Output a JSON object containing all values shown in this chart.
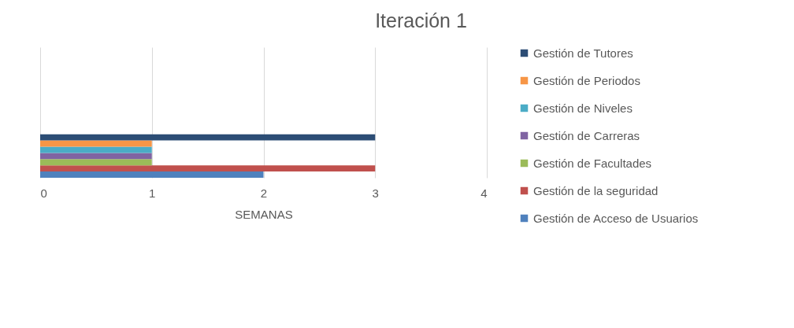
{
  "chart_data": {
    "type": "bar",
    "orientation": "horizontal",
    "title": "Iteración 1",
    "xlabel": "SEMANAS",
    "categories": [
      null
    ],
    "series": [
      {
        "name": "Gestión de Acceso de Usuarios",
        "color": "#4f81bd",
        "values": [
          2
        ]
      },
      {
        "name": "Gestión de la seguridad",
        "color": "#c0504d",
        "values": [
          3
        ]
      },
      {
        "name": "Gestión de Facultades",
        "color": "#9bbb59",
        "values": [
          1
        ]
      },
      {
        "name": "Gestión de Carreras",
        "color": "#8064a2",
        "values": [
          1
        ]
      },
      {
        "name": "Gestión de Niveles",
        "color": "#4bacc6",
        "values": [
          1
        ]
      },
      {
        "name": "Gestión de Periodos",
        "color": "#f79646",
        "values": [
          1
        ]
      },
      {
        "name": "Gestión de Tutores",
        "color": "#2c4d75",
        "values": [
          3
        ]
      }
    ],
    "xlim": [
      0,
      4
    ],
    "xticks": [
      0,
      1,
      2,
      3,
      4
    ],
    "grid": "x",
    "legend": "right"
  }
}
